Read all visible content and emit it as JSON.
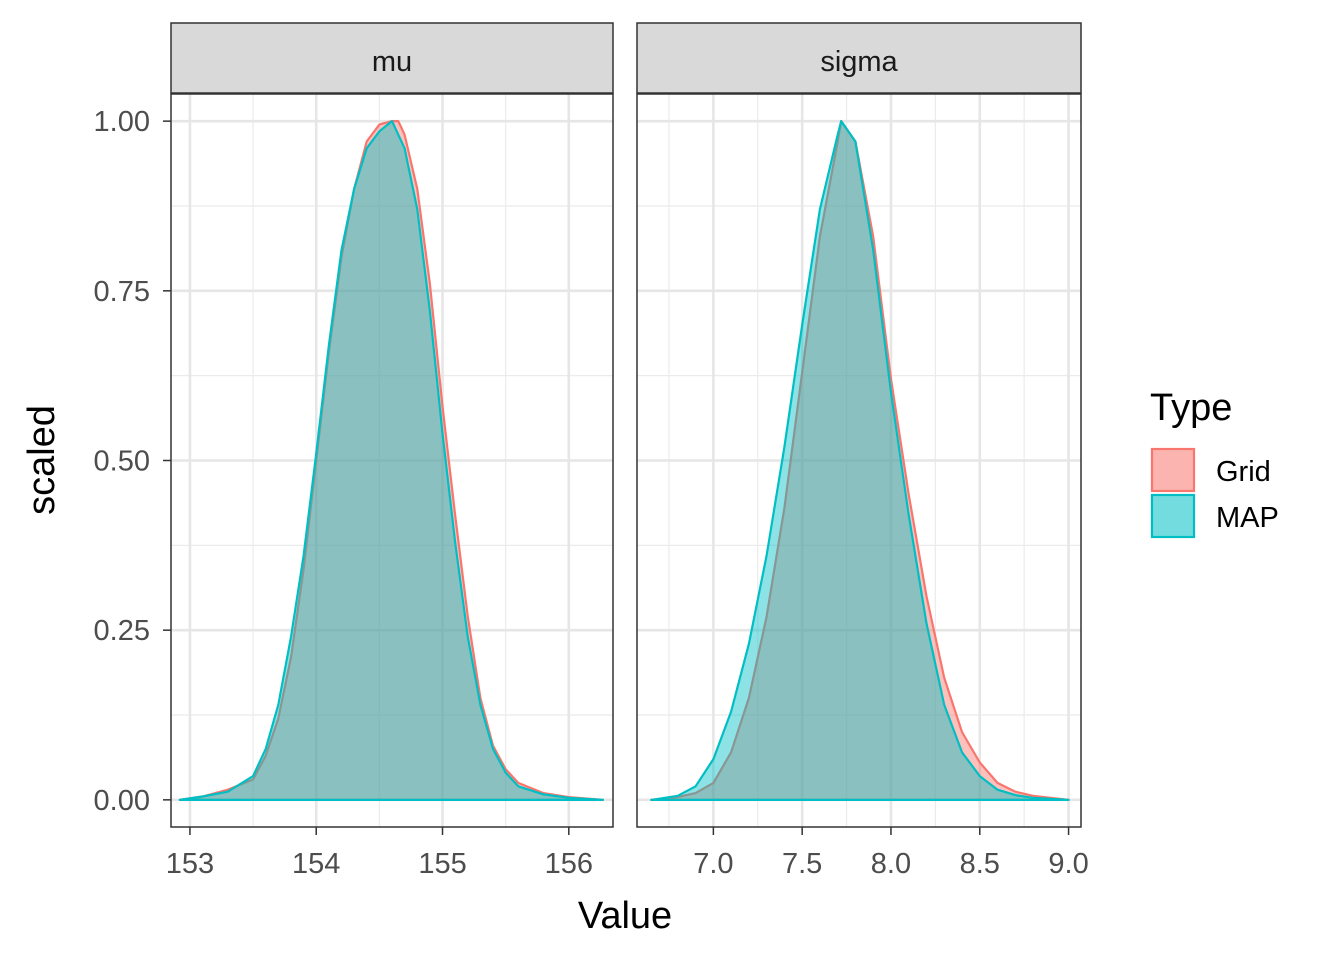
{
  "chart_data": {
    "type": "area",
    "facets": [
      {
        "label": "mu",
        "xlim": [
          152.85,
          156.35
        ],
        "x_ticks": [
          153,
          154,
          155,
          156
        ],
        "x_tick_labels": [
          "153",
          "154",
          "155",
          "156"
        ],
        "series": [
          {
            "name": "Grid",
            "x": [
              152.92,
              153.1,
              153.3,
              153.5,
              153.6,
              153.7,
              153.8,
              153.9,
              154.0,
              154.1,
              154.2,
              154.3,
              154.4,
              154.5,
              154.6,
              154.65,
              154.7,
              154.8,
              154.9,
              155.0,
              155.1,
              155.2,
              155.3,
              155.4,
              155.5,
              155.6,
              155.8,
              156.0,
              156.27
            ],
            "y": [
              0.0,
              0.005,
              0.015,
              0.03,
              0.065,
              0.12,
              0.21,
              0.34,
              0.5,
              0.66,
              0.8,
              0.9,
              0.97,
              0.995,
              1.0,
              1.0,
              0.98,
              0.9,
              0.76,
              0.58,
              0.42,
              0.27,
              0.15,
              0.08,
              0.045,
              0.025,
              0.01,
              0.004,
              0.0
            ]
          },
          {
            "name": "MAP",
            "x": [
              152.92,
              153.1,
              153.3,
              153.5,
              153.6,
              153.7,
              153.8,
              153.9,
              154.0,
              154.1,
              154.2,
              154.3,
              154.4,
              154.5,
              154.6,
              154.7,
              154.8,
              154.9,
              155.0,
              155.1,
              155.2,
              155.3,
              155.4,
              155.5,
              155.6,
              155.8,
              156.0,
              156.27
            ],
            "y": [
              0.0,
              0.005,
              0.012,
              0.035,
              0.075,
              0.14,
              0.24,
              0.36,
              0.51,
              0.67,
              0.81,
              0.9,
              0.96,
              0.985,
              1.0,
              0.96,
              0.87,
              0.72,
              0.54,
              0.38,
              0.24,
              0.14,
              0.075,
              0.04,
              0.02,
              0.008,
              0.003,
              0.0
            ]
          }
        ]
      },
      {
        "label": "sigma",
        "xlim": [
          6.57,
          9.07
        ],
        "x_ticks": [
          7.0,
          7.5,
          8.0,
          8.5,
          9.0
        ],
        "x_tick_labels": [
          "7.0",
          "7.5",
          "8.0",
          "8.5",
          "9.0"
        ],
        "series": [
          {
            "name": "Grid",
            "x": [
              6.65,
              6.8,
              6.9,
              7.0,
              7.1,
              7.2,
              7.3,
              7.4,
              7.5,
              7.6,
              7.7,
              7.72,
              7.8,
              7.9,
              8.0,
              8.1,
              8.2,
              8.3,
              8.4,
              8.5,
              8.6,
              8.7,
              8.8,
              9.0
            ],
            "y": [
              0.0,
              0.004,
              0.01,
              0.025,
              0.07,
              0.15,
              0.27,
              0.43,
              0.63,
              0.83,
              0.97,
              1.0,
              0.97,
              0.83,
              0.62,
              0.45,
              0.3,
              0.18,
              0.1,
              0.055,
              0.025,
              0.012,
              0.006,
              0.0
            ]
          },
          {
            "name": "MAP",
            "x": [
              6.65,
              6.8,
              6.9,
              7.0,
              7.1,
              7.2,
              7.3,
              7.4,
              7.5,
              7.6,
              7.7,
              7.72,
              7.8,
              7.9,
              8.0,
              8.1,
              8.2,
              8.3,
              8.4,
              8.5,
              8.6,
              8.7,
              8.8,
              9.0
            ],
            "y": [
              0.0,
              0.006,
              0.02,
              0.06,
              0.13,
              0.23,
              0.36,
              0.52,
              0.7,
              0.87,
              0.98,
              1.0,
              0.97,
              0.81,
              0.6,
              0.42,
              0.26,
              0.14,
              0.07,
              0.035,
              0.015,
              0.007,
              0.003,
              0.0
            ]
          }
        ]
      }
    ],
    "ylim": [
      -0.04,
      1.04
    ],
    "y_ticks": [
      0.0,
      0.25,
      0.5,
      0.75,
      1.0
    ],
    "y_tick_labels": [
      "0.00",
      "0.25",
      "0.50",
      "0.75",
      "1.00"
    ],
    "xlabel": "Value",
    "ylabel": "scaled",
    "legend": {
      "title": "Type",
      "placement": "right",
      "entries": [
        {
          "label": "Grid",
          "fill": "#F8766D",
          "stroke": "#F8766D"
        },
        {
          "label": "MAP",
          "fill": "#00BFC4",
          "stroke": "#00BFC4"
        }
      ]
    },
    "grid": true,
    "colors": {
      "Grid": "#F8766D",
      "MAP": "#00BFC4"
    }
  }
}
